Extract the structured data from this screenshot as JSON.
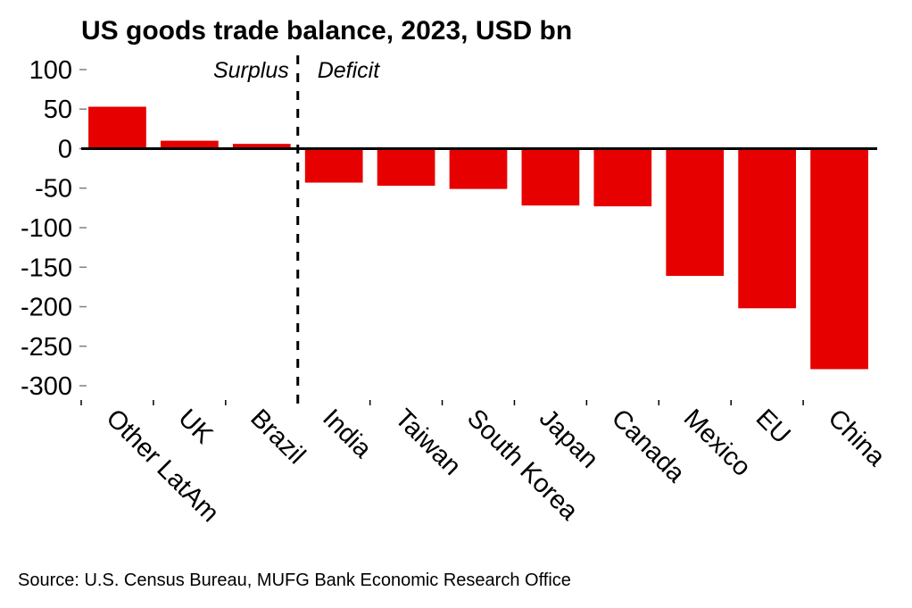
{
  "chart_data": {
    "type": "bar",
    "title": "US goods trade balance, 2023, USD bn",
    "xlabel": "",
    "ylabel": "",
    "categories": [
      "Other LatAm",
      "UK",
      "Brazil",
      "India",
      "Taiwan",
      "South Korea",
      "Japan",
      "Canada",
      "Mexico",
      "EU",
      "China"
    ],
    "values": [
      53,
      10,
      6,
      -43,
      -47,
      -51,
      -72,
      -73,
      -161,
      -202,
      -279
    ],
    "ylim": [
      -318,
      118
    ],
    "yticks": [
      100,
      50,
      0,
      -50,
      -100,
      -150,
      -200,
      -250,
      -300
    ],
    "grid": false,
    "bar_color": "#e60000",
    "annotations": [
      {
        "text": "Surplus",
        "position": "left of divider"
      },
      {
        "text": "Deficit",
        "position": "right of divider"
      }
    ],
    "divider_after_category": "Brazil",
    "source": "Source: U.S. Census Bureau, MUFG Bank Economic Research Office"
  }
}
